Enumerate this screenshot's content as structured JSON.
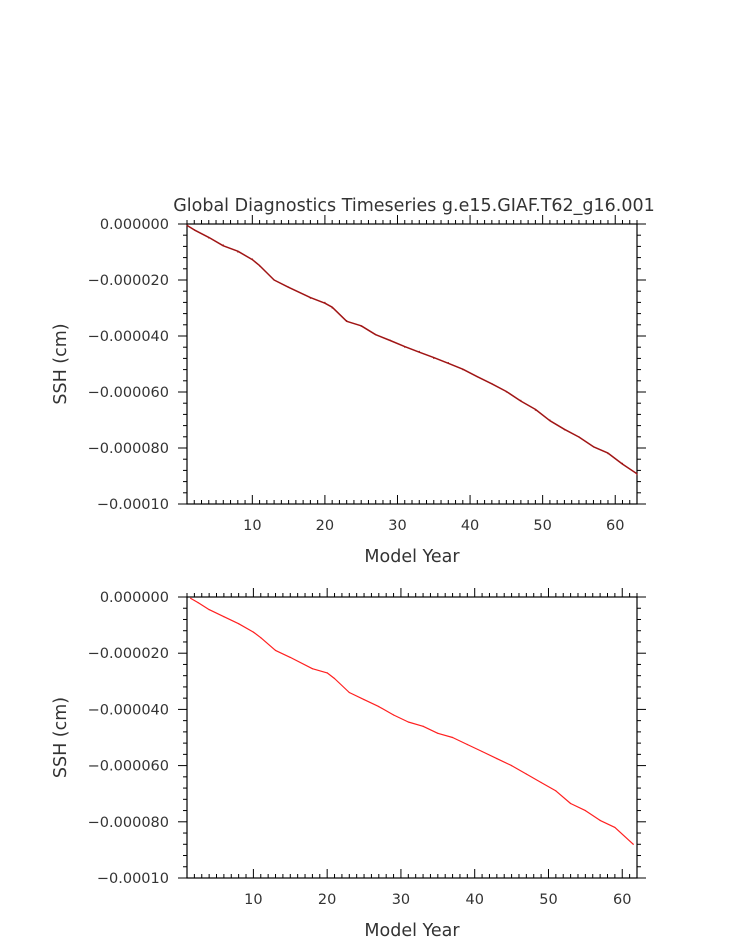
{
  "title": "Global Diagnostics Timeseries g.e15.GIAF.T62_g16.001",
  "chart_data": [
    {
      "type": "line",
      "title": "Global Diagnostics Timeseries g.e15.GIAF.T62_g16.001",
      "xlabel": "Model Year",
      "ylabel": "SSH (cm)",
      "xlim": [
        1,
        63
      ],
      "ylim": [
        -0.0001,
        0
      ],
      "x_ticks": [
        10,
        20,
        30,
        40,
        50,
        60
      ],
      "x_tick_labels": [
        "10",
        "20",
        "30",
        "40",
        "50",
        "60"
      ],
      "y_ticks": [
        0,
        -2e-05,
        -4e-05,
        -6e-05,
        -8e-05,
        -0.0001
      ],
      "y_tick_labels": [
        "0.000000",
        "−0.000020",
        "−0.000040",
        "−0.000060",
        "−0.000080",
        "−0.00010"
      ],
      "grid": false,
      "legend": "none",
      "series": [
        {
          "color": "#a01515",
          "sampling": "monthly",
          "x": [
            1,
            2,
            4,
            6,
            8,
            10,
            11,
            13,
            15,
            18,
            20,
            21,
            23,
            25,
            27,
            29,
            31,
            33,
            35,
            37,
            39,
            41,
            43,
            45,
            47,
            49,
            51,
            53,
            55,
            57,
            59,
            61,
            63
          ],
          "y": [
            -5e-07,
            -2e-06,
            -5e-06,
            -7.5e-06,
            -1e-05,
            -1.25e-05,
            -1.5e-05,
            -2e-05,
            -2.25e-05,
            -2.65e-05,
            -2.8e-05,
            -3e-05,
            -3.45e-05,
            -3.65e-05,
            -3.95e-05,
            -4.15e-05,
            -4.4e-05,
            -4.55e-05,
            -4.8e-05,
            -4.95e-05,
            -5.2e-05,
            -5.45e-05,
            -5.7e-05,
            -6e-05,
            -6.3e-05,
            -6.65e-05,
            -7e-05,
            -7.35e-05,
            -7.6e-05,
            -7.95e-05,
            -8.2e-05,
            -8.55e-05,
            -8.95e-05
          ]
        }
      ]
    },
    {
      "type": "line",
      "xlabel": "Model Year",
      "ylabel": "SSH (cm)",
      "xlim": [
        1,
        62
      ],
      "ylim": [
        -0.0001,
        0
      ],
      "x_ticks": [
        10,
        20,
        30,
        40,
        50,
        60
      ],
      "x_tick_labels": [
        "10",
        "20",
        "30",
        "40",
        "50",
        "60"
      ],
      "y_ticks": [
        0,
        -2e-05,
        -4e-05,
        -6e-05,
        -8e-05,
        -0.0001
      ],
      "y_tick_labels": [
        "0.000000",
        "−0.000020",
        "−0.000040",
        "−0.000060",
        "−0.000080",
        "−0.00010"
      ],
      "grid": false,
      "legend": "none",
      "series": [
        {
          "color": "#ff2020",
          "sampling": "annual",
          "x": [
            1.5,
            2.5,
            4,
            6,
            8,
            10,
            11,
            13,
            15,
            18,
            20,
            21,
            23,
            25,
            27,
            29,
            31,
            33,
            35,
            37,
            39,
            41,
            43,
            45,
            47,
            49,
            51,
            53,
            55,
            57,
            59,
            61.5
          ],
          "y": [
            -5e-07,
            -2e-06,
            -4.5e-06,
            -7e-06,
            -9.5e-06,
            -1.25e-05,
            -1.45e-05,
            -1.9e-05,
            -2.15e-05,
            -2.55e-05,
            -2.7e-05,
            -2.9e-05,
            -3.4e-05,
            -3.65e-05,
            -3.9e-05,
            -4.2e-05,
            -4.45e-05,
            -4.6e-05,
            -4.85e-05,
            -5e-05,
            -5.25e-05,
            -5.5e-05,
            -5.75e-05,
            -6e-05,
            -6.3e-05,
            -6.6e-05,
            -6.9e-05,
            -7.35e-05,
            -7.6e-05,
            -7.95e-05,
            -8.2e-05,
            -8.8e-05
          ]
        }
      ]
    }
  ]
}
